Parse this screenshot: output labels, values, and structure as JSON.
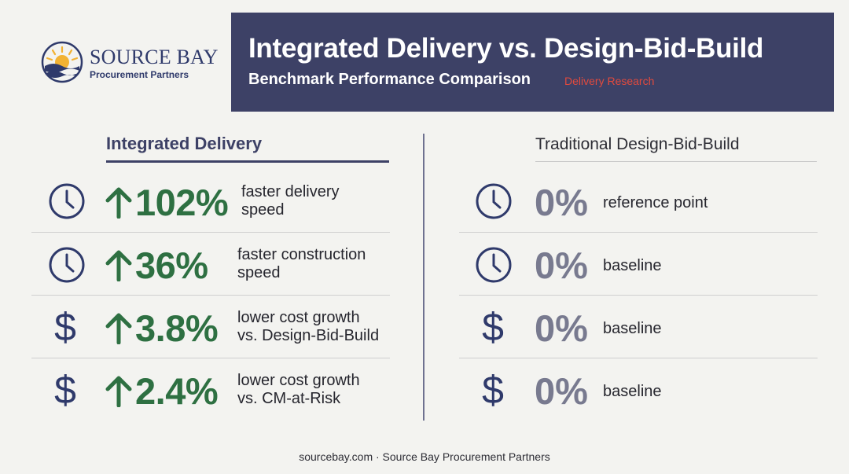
{
  "logo": {
    "name": "SOURCE BAY",
    "subtitle": "Procurement Partners"
  },
  "header": {
    "title": "Integrated Delivery vs. Design-Bid-Build",
    "subtitle": "Benchmark Performance Comparison",
    "tag": "Delivery Research"
  },
  "left": {
    "title": "Integrated Delivery",
    "rows": [
      {
        "icon": "clock-icon",
        "value": "102%",
        "line1": "faster delivery",
        "line2": "speed"
      },
      {
        "icon": "clock-icon",
        "value": "36%",
        "line1": "faster construction",
        "line2": "speed"
      },
      {
        "icon": "dollar-icon",
        "glyph": "$",
        "value": "3.8%",
        "line1": "lower cost growth",
        "line2": "vs. Design-Bid-Build"
      },
      {
        "icon": "dollar-icon",
        "glyph": "$",
        "value": "2.4%",
        "line1": "lower cost growth",
        "line2": "vs. CM-at-Risk"
      }
    ]
  },
  "right": {
    "title": "Traditional Design-Bid-Build",
    "rows": [
      {
        "icon": "clock-icon",
        "value": "0%",
        "label": "reference point"
      },
      {
        "icon": "clock-icon",
        "value": "0%",
        "label": "baseline"
      },
      {
        "icon": "dollar-icon",
        "glyph": "$",
        "value": "0%",
        "label": "baseline"
      },
      {
        "icon": "dollar-icon",
        "glyph": "$",
        "value": "0%",
        "label": "baseline"
      }
    ]
  },
  "colors": {
    "navy": "#3d4166",
    "green": "#2e7042",
    "gray": "#787a8f",
    "accent_red": "#e04a3e"
  },
  "footer": "sourcebay.com · Source Bay Procurement Partners"
}
